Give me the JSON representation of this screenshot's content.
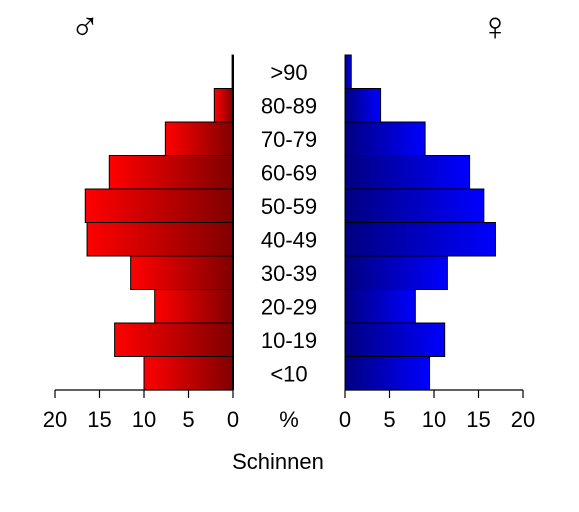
{
  "chart_data": {
    "type": "bar",
    "subtype": "population-pyramid",
    "categories": [
      "<10",
      "10-19",
      "20-29",
      "30-39",
      "40-49",
      "50-59",
      "60-69",
      "70-79",
      "80-89",
      ">90"
    ],
    "series": [
      {
        "name": "♂",
        "side": "left",
        "values": [
          10.0,
          13.3,
          8.8,
          11.5,
          16.4,
          16.6,
          13.9,
          7.6,
          2.1,
          0.1
        ],
        "color": "#ff0000"
      },
      {
        "name": "♀",
        "side": "right",
        "values": [
          9.5,
          11.2,
          7.9,
          11.5,
          16.9,
          15.6,
          14.0,
          9.0,
          4.0,
          0.7
        ],
        "color": "#0000ff"
      }
    ],
    "x_ticks": [
      "20",
      "15",
      "10",
      "5",
      "0"
    ],
    "x_ticks_right": [
      "0",
      "5",
      "10",
      "15",
      "20"
    ],
    "xlim": [
      0,
      20
    ],
    "unit_label": "%",
    "xlabel": "Schinnen",
    "male_symbol": "♂",
    "female_symbol": "♀",
    "colors": {
      "male_light": "#ff0000",
      "male_dark": "#800000",
      "female_light": "#0000ff",
      "female_dark": "#000080"
    }
  }
}
